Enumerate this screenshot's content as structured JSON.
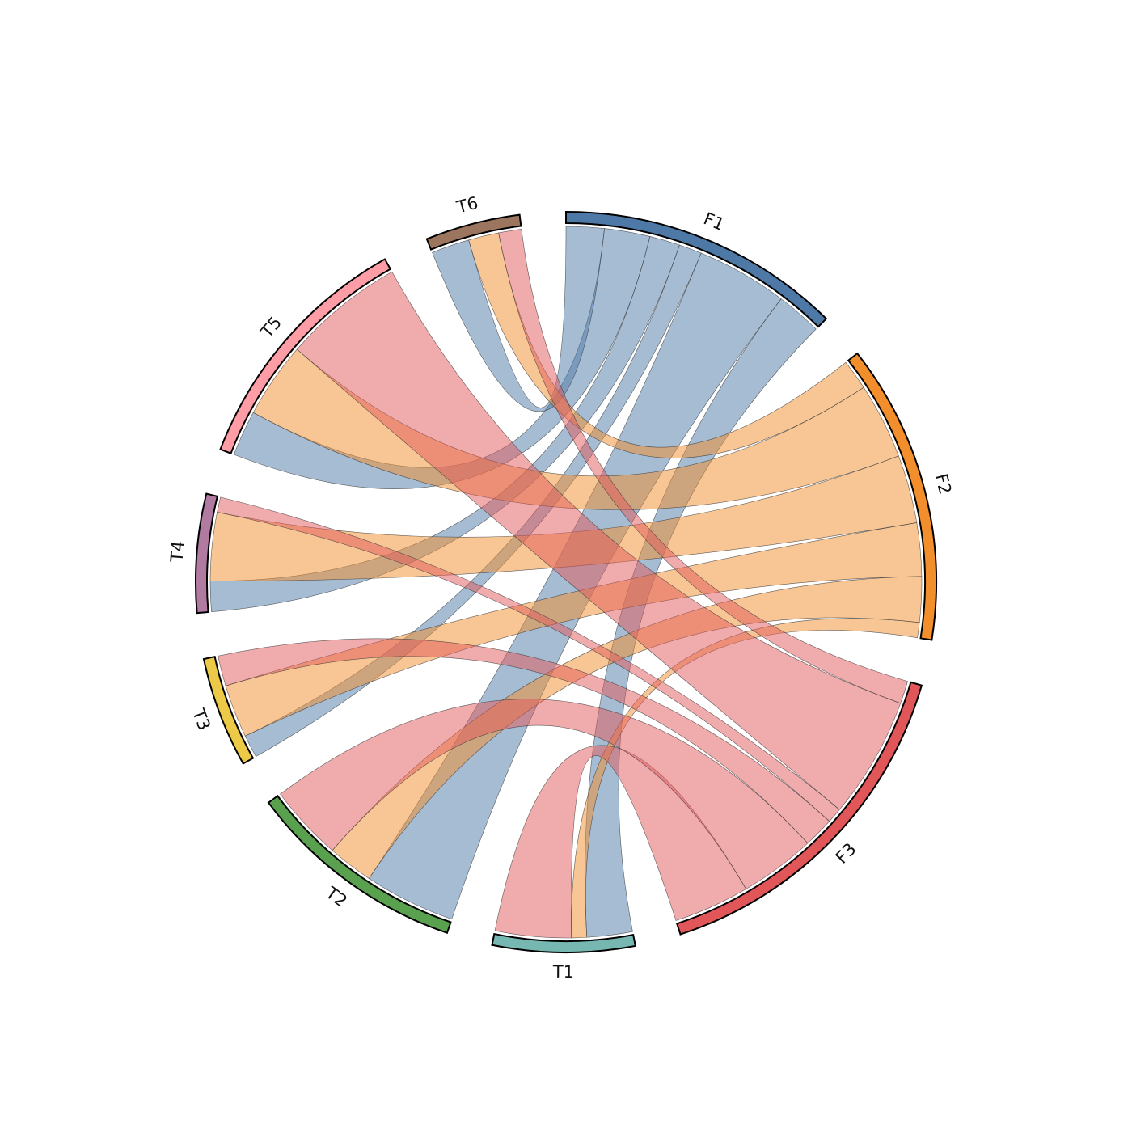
{
  "chart_data": {
    "type": "chord",
    "title": "",
    "sources": [
      {
        "name": "F1",
        "color": "#4e79a7"
      },
      {
        "name": "F2",
        "color": "#f28e2b"
      },
      {
        "name": "F3",
        "color": "#e15759"
      }
    ],
    "targets": [
      {
        "name": "T1",
        "color": "#76b7b2"
      },
      {
        "name": "T2",
        "color": "#59a14f"
      },
      {
        "name": "T3",
        "color": "#edc948"
      },
      {
        "name": "T4",
        "color": "#b07aa1"
      },
      {
        "name": "T5",
        "color": "#ff9da7"
      },
      {
        "name": "T6",
        "color": "#9c755f"
      }
    ],
    "segment_order": [
      "F1",
      "F2",
      "F3",
      "T1",
      "T2",
      "T3",
      "T4",
      "T5",
      "T6"
    ],
    "target_order_within_source": [
      "T6",
      "T5",
      "T4",
      "T3",
      "T2",
      "T1"
    ],
    "flows": [
      {
        "source": "F1",
        "target": "T1",
        "value": 6
      },
      {
        "source": "F1",
        "target": "T2",
        "value": 12
      },
      {
        "source": "F1",
        "target": "T3",
        "value": 3
      },
      {
        "source": "F1",
        "target": "T4",
        "value": 4
      },
      {
        "source": "F1",
        "target": "T5",
        "value": 6
      },
      {
        "source": "F1",
        "target": "T6",
        "value": 5
      },
      {
        "source": "F2",
        "target": "T1",
        "value": 2
      },
      {
        "source": "F2",
        "target": "T2",
        "value": 6
      },
      {
        "source": "F2",
        "target": "T3",
        "value": 7
      },
      {
        "source": "F2",
        "target": "T4",
        "value": 9
      },
      {
        "source": "F2",
        "target": "T5",
        "value": 10
      },
      {
        "source": "F2",
        "target": "T6",
        "value": 4
      },
      {
        "source": "F3",
        "target": "T1",
        "value": 10
      },
      {
        "source": "F3",
        "target": "T2",
        "value": 10
      },
      {
        "source": "F3",
        "target": "T3",
        "value": 4
      },
      {
        "source": "F3",
        "target": "T4",
        "value": 2
      },
      {
        "source": "F3",
        "target": "T5",
        "value": 16
      },
      {
        "source": "F3",
        "target": "T6",
        "value": 3
      }
    ]
  }
}
